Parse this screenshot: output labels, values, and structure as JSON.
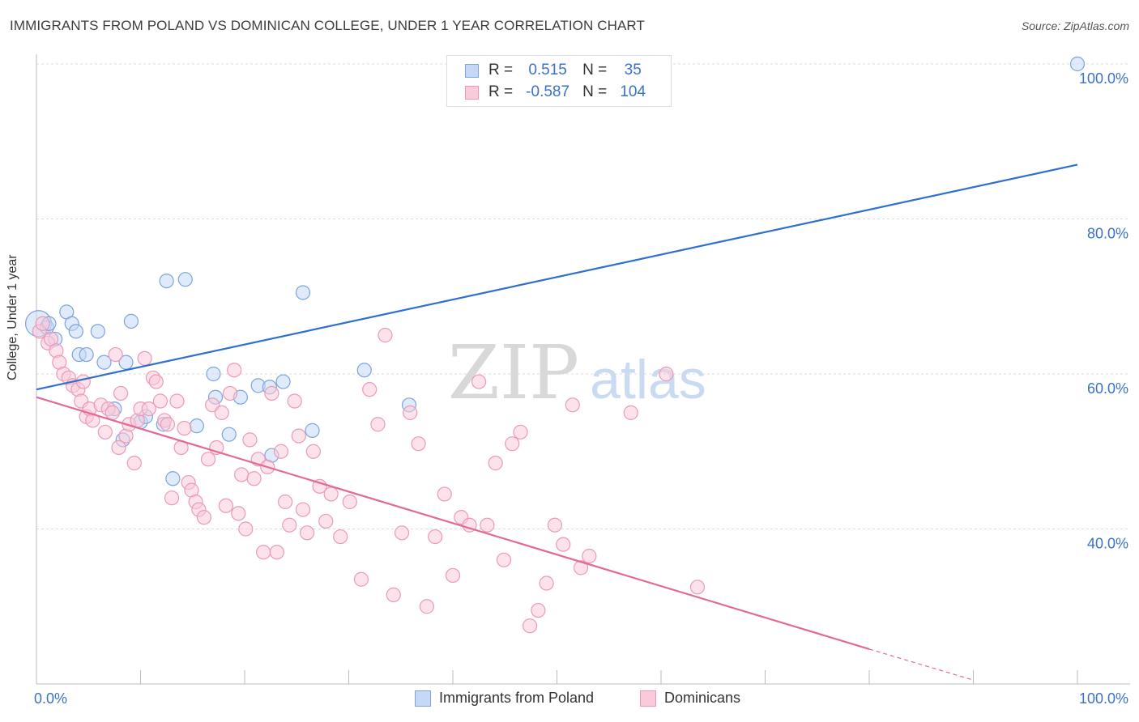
{
  "title": "IMMIGRANTS FROM POLAND VS DOMINICAN COLLEGE, UNDER 1 YEAR CORRELATION CHART",
  "source": "Source: ZipAtlas.com",
  "watermark": {
    "zip": "ZIP",
    "atlas": "atlas"
  },
  "stats": {
    "r_label": "R =",
    "n_label": "N =",
    "blue": {
      "r": "0.515",
      "n": "35"
    },
    "pink": {
      "r": "-0.587",
      "n": "104"
    }
  },
  "legend": {
    "blue": "Immigrants from Poland",
    "pink": "Dominicans"
  },
  "colors": {
    "blue_fill": "#c5d8f5",
    "blue_stroke": "#7ea4de",
    "blue_line": "#2e6fcf",
    "pink_fill": "#f9cad9",
    "pink_stroke": "#eb9ab6",
    "pink_line": "#e26a96",
    "tick_label": "#3a72c8"
  },
  "chart_data": {
    "type": "scatter",
    "xlabel": "",
    "ylabel": "College, Under 1 year",
    "xlim": [
      0,
      100
    ],
    "ylim": [
      20,
      100
    ],
    "x_tick_labels": [
      "0.0%",
      "100.0%"
    ],
    "y_ticks": [
      40,
      60,
      80,
      100
    ],
    "y_tick_labels": [
      "40.0%",
      "60.0%",
      "80.0%",
      "100.0%"
    ],
    "grid": "horizontal dashed",
    "series": [
      {
        "name": "Immigrants from Poland",
        "color": "#7ea4de",
        "points": [
          [
            0.2,
            66.5
          ],
          [
            1,
            66
          ],
          [
            1.2,
            66.5
          ],
          [
            1.8,
            64.5
          ],
          [
            2.9,
            68
          ],
          [
            3.4,
            66.5
          ],
          [
            3.8,
            65.5
          ],
          [
            4.1,
            62.5
          ],
          [
            4.8,
            62.5
          ],
          [
            5.9,
            65.5
          ],
          [
            6.5,
            61.5
          ],
          [
            7.5,
            55.5
          ],
          [
            8.3,
            51.5
          ],
          [
            8.6,
            61.5
          ],
          [
            9.1,
            66.8
          ],
          [
            10,
            53.8
          ],
          [
            10.5,
            54.5
          ],
          [
            12.2,
            53.5
          ],
          [
            12.5,
            72
          ],
          [
            13.1,
            46.5
          ],
          [
            14.3,
            72.2
          ],
          [
            15.4,
            53.3
          ],
          [
            17,
            60
          ],
          [
            17.2,
            57
          ],
          [
            18.5,
            52.2
          ],
          [
            19.6,
            57
          ],
          [
            21.3,
            58.5
          ],
          [
            22.4,
            58.3
          ],
          [
            22.6,
            49.5
          ],
          [
            23.7,
            59
          ],
          [
            25.6,
            70.5
          ],
          [
            26.5,
            52.7
          ],
          [
            31.5,
            60.5
          ],
          [
            35.8,
            56
          ],
          [
            100,
            100
          ]
        ],
        "trendline": {
          "x": [
            0,
            100
          ],
          "y": [
            58.0,
            87.0
          ]
        }
      },
      {
        "name": "Dominicans",
        "color": "#eb9ab6",
        "points": [
          [
            0.3,
            65.5
          ],
          [
            0.6,
            66.5
          ],
          [
            1.1,
            64
          ],
          [
            1.4,
            64.5
          ],
          [
            1.9,
            63
          ],
          [
            2.2,
            61.5
          ],
          [
            2.6,
            60
          ],
          [
            3.1,
            59.5
          ],
          [
            3.5,
            58.5
          ],
          [
            4,
            58
          ],
          [
            4.3,
            56.5
          ],
          [
            4.5,
            59
          ],
          [
            4.8,
            54.5
          ],
          [
            5.1,
            55.5
          ],
          [
            5.4,
            54
          ],
          [
            6.2,
            56
          ],
          [
            6.6,
            52.5
          ],
          [
            6.9,
            55.5
          ],
          [
            7.3,
            55
          ],
          [
            7.6,
            62.5
          ],
          [
            7.9,
            50.5
          ],
          [
            8.1,
            57.5
          ],
          [
            8.6,
            52
          ],
          [
            8.9,
            53.5
          ],
          [
            9.4,
            48.5
          ],
          [
            9.7,
            54
          ],
          [
            10,
            55.5
          ],
          [
            10.4,
            62
          ],
          [
            10.8,
            55.5
          ],
          [
            11.2,
            59.5
          ],
          [
            11.5,
            59
          ],
          [
            11.9,
            56.5
          ],
          [
            12.3,
            54
          ],
          [
            12.6,
            53.5
          ],
          [
            13,
            44
          ],
          [
            13.5,
            56.5
          ],
          [
            13.9,
            50.5
          ],
          [
            14.2,
            53
          ],
          [
            14.6,
            46
          ],
          [
            14.9,
            45
          ],
          [
            15.3,
            43.5
          ],
          [
            15.6,
            42.5
          ],
          [
            16.1,
            41.5
          ],
          [
            16.5,
            49
          ],
          [
            16.9,
            56
          ],
          [
            17.3,
            50.5
          ],
          [
            17.8,
            55
          ],
          [
            18.2,
            43
          ],
          [
            18.6,
            57.5
          ],
          [
            19,
            60.5
          ],
          [
            19.4,
            42
          ],
          [
            19.7,
            47
          ],
          [
            20.1,
            40
          ],
          [
            20.5,
            51.5
          ],
          [
            20.9,
            46.5
          ],
          [
            21.3,
            49
          ],
          [
            21.8,
            37
          ],
          [
            22.2,
            48
          ],
          [
            22.6,
            57.5
          ],
          [
            23.1,
            37
          ],
          [
            23.5,
            50
          ],
          [
            23.9,
            43.5
          ],
          [
            24.3,
            40.5
          ],
          [
            24.8,
            56.5
          ],
          [
            25.2,
            52
          ],
          [
            25.6,
            42.5
          ],
          [
            26,
            39.5
          ],
          [
            26.6,
            50
          ],
          [
            27.2,
            45.5
          ],
          [
            27.8,
            41
          ],
          [
            28.3,
            44.5
          ],
          [
            29.2,
            39
          ],
          [
            30.1,
            43.5
          ],
          [
            31.2,
            33.5
          ],
          [
            32,
            58
          ],
          [
            32.8,
            53.5
          ],
          [
            33.5,
            65
          ],
          [
            34.3,
            31.5
          ],
          [
            35.1,
            39.5
          ],
          [
            35.9,
            55
          ],
          [
            36.7,
            51
          ],
          [
            37.5,
            30
          ],
          [
            38.3,
            39
          ],
          [
            39.2,
            44.5
          ],
          [
            40,
            34
          ],
          [
            40.8,
            41.5
          ],
          [
            41.6,
            40.5
          ],
          [
            42.5,
            59
          ],
          [
            43.3,
            40.5
          ],
          [
            44.1,
            48.5
          ],
          [
            44.9,
            36
          ],
          [
            45.7,
            51
          ],
          [
            46.5,
            52.5
          ],
          [
            47.4,
            27.5
          ],
          [
            48.2,
            29.5
          ],
          [
            49,
            33
          ],
          [
            49.8,
            40.5
          ],
          [
            50.6,
            38
          ],
          [
            51.5,
            56
          ],
          [
            52.3,
            35
          ],
          [
            53.1,
            36.5
          ],
          [
            57.1,
            55
          ],
          [
            60.5,
            60
          ],
          [
            63.5,
            32.5
          ]
        ],
        "trendline": {
          "x": [
            0,
            80
          ],
          "y": [
            57.0,
            24.5
          ]
        },
        "trendline_ext": {
          "x": [
            80,
            90
          ],
          "y": [
            24.5,
            20.5
          ]
        }
      }
    ]
  }
}
